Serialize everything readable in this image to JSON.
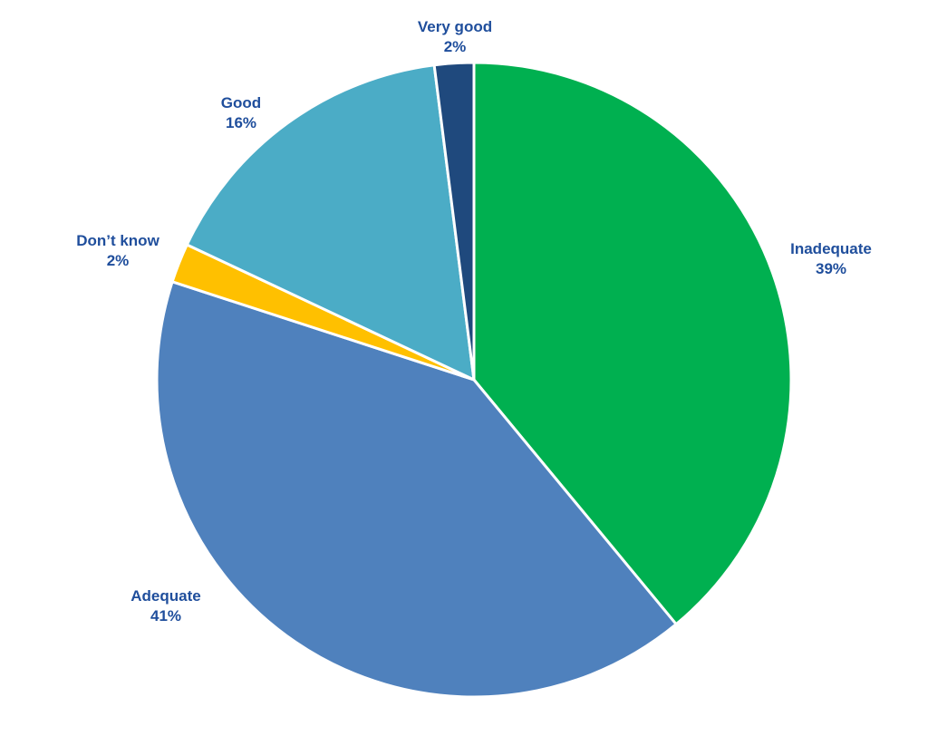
{
  "chart_data": {
    "type": "pie",
    "start_angle_deg": 0,
    "direction": "clockwise",
    "slices": [
      {
        "label": "Inadequate",
        "value": 39,
        "value_label": "39%",
        "color": "#00b050"
      },
      {
        "label": "Adequate",
        "value": 41,
        "value_label": "41%",
        "color": "#4f81bd"
      },
      {
        "label": "Don’t know",
        "value": 2,
        "value_label": "2%",
        "color": "#ffc000"
      },
      {
        "label": "Good",
        "value": 16,
        "value_label": "16%",
        "color": "#4bacc6"
      },
      {
        "label": "Very good",
        "value": 2,
        "value_label": "2%",
        "color": "#1f497d"
      }
    ],
    "legend": "none",
    "label_color": "#1f4e9c"
  }
}
